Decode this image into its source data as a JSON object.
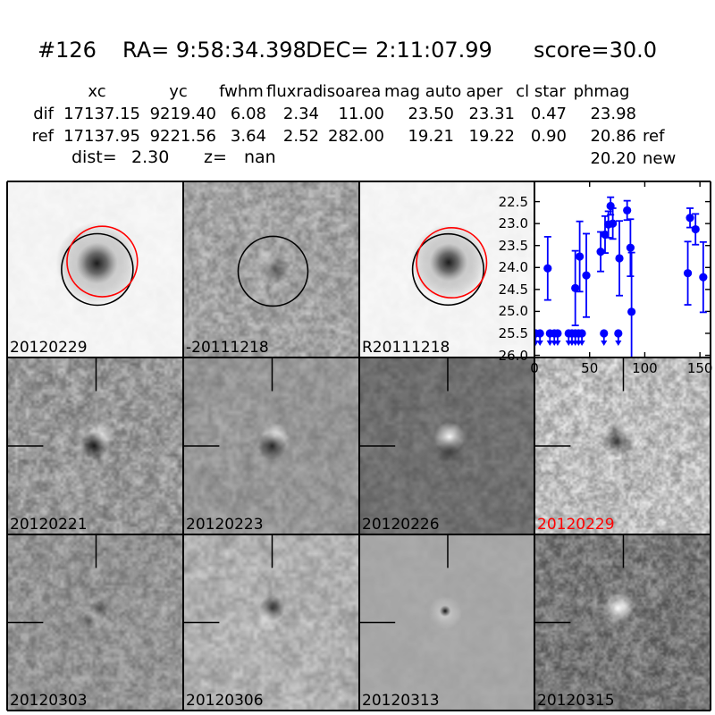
{
  "header": {
    "object_id": "#126",
    "ra": "RA= 9:58:34.398",
    "dec": "DEC= 2:11:07.99",
    "score": "score=30.0"
  },
  "photometry_table": {
    "columns": [
      "xc",
      "yc",
      "fwhm",
      "fluxrad",
      "isoarea",
      "mag auto",
      "aper",
      "cl star",
      "phmag"
    ],
    "rows": [
      {
        "name": "dif",
        "values": [
          "17137.15",
          "9219.40",
          "6.08",
          "2.34",
          "11.00",
          "23.50",
          "23.31",
          "0.47",
          "23.98"
        ],
        "suffix": ""
      },
      {
        "name": "ref",
        "values": [
          "17137.95",
          "9221.56",
          "3.64",
          "2.52",
          "282.00",
          "19.21",
          "19.22",
          "0.90",
          "20.86"
        ],
        "suffix": "ref"
      },
      {
        "name": "",
        "values": [
          "",
          "",
          "",
          "",
          "",
          "",
          "",
          "",
          "20.20"
        ],
        "suffix": "new"
      }
    ],
    "dist_label": "dist=",
    "dist_value": "2.30",
    "z_label": "z=",
    "z_value": "nan"
  },
  "cutouts": {
    "panels": [
      {
        "label": "20120229",
        "label_color": "#000000"
      },
      {
        "label": "-20111218",
        "label_color": "#000000"
      },
      {
        "label": "R20111218",
        "label_color": "#000000"
      },
      {
        "label": "20120221",
        "label_color": "#000000"
      },
      {
        "label": "20120223",
        "label_color": "#000000"
      },
      {
        "label": "20120226",
        "label_color": "#000000"
      },
      {
        "label": "20120229",
        "label_color": "#ff0000"
      },
      {
        "label": "20120303",
        "label_color": "#000000"
      },
      {
        "label": "20120306",
        "label_color": "#000000"
      },
      {
        "label": "20120313",
        "label_color": "#000000"
      },
      {
        "label": "20120315",
        "label_color": "#000000"
      }
    ],
    "aperture_colors": {
      "black_circle": "#000000",
      "red_circle": "#ff0000"
    }
  },
  "chart_data": {
    "type": "scatter",
    "title": "",
    "xlabel": "",
    "ylabel": "",
    "x_ticks": [
      0,
      50,
      100,
      150
    ],
    "y_tick_labels": [
      "22.5",
      "23.0",
      "23.5",
      "24.0",
      "24.5",
      "25.0",
      "25.5",
      "26.0"
    ],
    "xlim": [
      0,
      159.6
    ],
    "ylim": [
      26.05,
      22.04
    ],
    "y_axis_inverted": true,
    "marker_color": "#0000ff",
    "legend": "none",
    "grid": false,
    "series": [
      {
        "name": "detections",
        "marker": "filled-circle-with-errorbar",
        "points_day_mag_err": [
          [
            12,
            24.02,
            0.72
          ],
          [
            37,
            24.47,
            0.85
          ],
          [
            41,
            23.75,
            0.8
          ],
          [
            47,
            24.18,
            0.95
          ],
          [
            60,
            23.64,
            0.45
          ],
          [
            64,
            23.25,
            0.42
          ],
          [
            67,
            23.02,
            0.3
          ],
          [
            69,
            22.6,
            0.2
          ],
          [
            71,
            23.0,
            0.35
          ],
          [
            77,
            23.79,
            0.85
          ],
          [
            84,
            22.7,
            0.22
          ],
          [
            87,
            23.55,
            0.65
          ],
          [
            88,
            25.01,
            1.35
          ],
          [
            139,
            24.13,
            0.72
          ],
          [
            141,
            22.87,
            0.22
          ],
          [
            146,
            23.13,
            0.35
          ],
          [
            153,
            24.22,
            0.8
          ]
        ]
      },
      {
        "name": "upper_limits",
        "marker": "filled-circle-down-arrow",
        "limit_mag": 25.5,
        "days": [
          1,
          5,
          14,
          18,
          21,
          31,
          34,
          37,
          40,
          43,
          63,
          76
        ]
      }
    ]
  }
}
